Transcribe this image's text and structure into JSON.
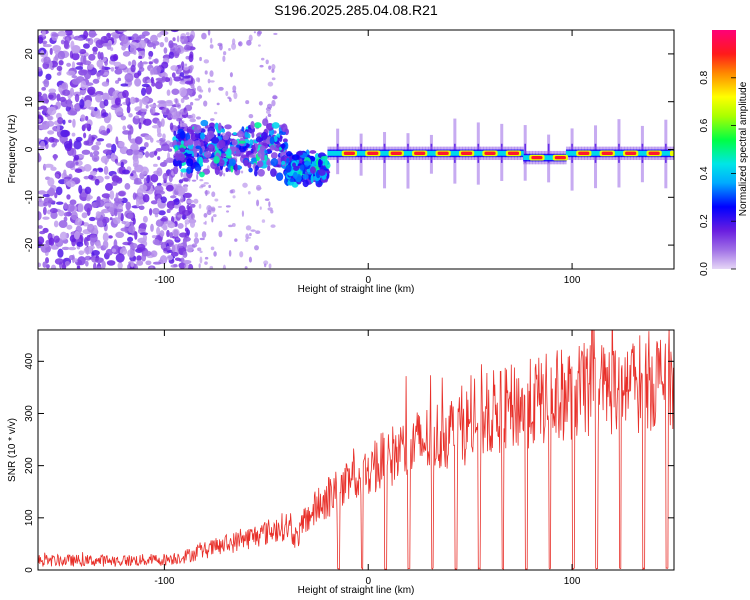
{
  "figure_title": "S196.2025.285.04.08.R21",
  "chart_data": [
    {
      "type": "heatmap",
      "xlabel": "Height of straight line (km)",
      "ylabel": "Frequency (Hz)",
      "xlim": [
        -162,
        150
      ],
      "ylim": [
        -25,
        25
      ],
      "x_ticks": [
        -100,
        0,
        100
      ],
      "y_ticks": [
        -20,
        -10,
        0,
        10,
        20
      ],
      "colorbar": {
        "label": "Normalized spectral amplitude",
        "range": [
          0,
          1
        ],
        "ticks": [
          "0.0",
          "0.2",
          "0.4",
          "0.6",
          "0.8"
        ],
        "tick_values": [
          0.0,
          0.2,
          0.4,
          0.6,
          0.8
        ]
      },
      "features": {
        "noise_region_km": [
          -162,
          -92
        ],
        "scattered_onset_km": [
          -95,
          -40
        ],
        "carrier_transition_km": [
          -40,
          -20
        ],
        "carrier_start_km": -20,
        "carrier_frequency_hz": -0.8,
        "carrier_dip_km": [
          76,
          96
        ],
        "carrier_dip_frequency_hz": -1.7,
        "recurring_spur_spacing_km": 11.5
      }
    },
    {
      "type": "line",
      "xlabel": "Height of straight line (km)",
      "ylabel": "SNR (10 * v/v)",
      "xlim": [
        -162,
        150
      ],
      "ylim": [
        0,
        460
      ],
      "x_ticks": [
        -100,
        0,
        100
      ],
      "y_ticks": [
        0,
        100,
        200,
        300,
        400
      ],
      "series": [
        {
          "name": "SNR",
          "color": "#e8302a",
          "x_km": [
            -162,
            -140,
            -120,
            -100,
            -90,
            -80,
            -70,
            -60,
            -50,
            -40,
            -35,
            -30,
            -20,
            -10,
            0,
            10,
            20,
            30,
            40,
            50,
            60,
            70,
            80,
            90,
            100,
            110,
            120,
            130,
            140,
            150
          ],
          "mean_snr": [
            18,
            18,
            18,
            20,
            26,
            38,
            48,
            60,
            72,
            85,
            60,
            100,
            140,
            160,
            190,
            215,
            235,
            250,
            265,
            280,
            300,
            310,
            320,
            330,
            340,
            345,
            350,
            355,
            365,
            370
          ],
          "dropout_start_km": -15,
          "dropout_spacing_km": 11.5
        }
      ]
    }
  ]
}
